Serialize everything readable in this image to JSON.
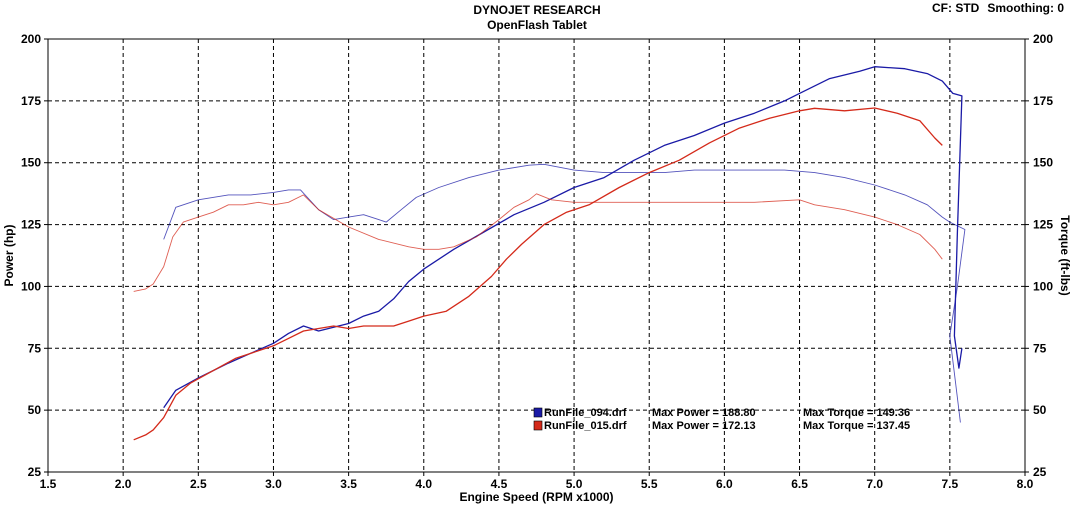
{
  "header": {
    "title": "DYNOJET RESEARCH",
    "subtitle": "OpenFlash Tablet",
    "cf_label": "CF: STD",
    "smoothing_label": "Smoothing: 0"
  },
  "colors": {
    "run1": "#1a1aa6",
    "run2": "#d42a1a",
    "grid": "#000000",
    "background": "#ffffff"
  },
  "chart_data": {
    "type": "line",
    "xlabel": "Engine Speed (RPM x1000)",
    "ylabel": "Power (hp)",
    "y2label": "Torque (ft-lbs)",
    "xlim": [
      1.5,
      8.0
    ],
    "ylim": [
      25,
      200
    ],
    "y2lim": [
      25,
      200
    ],
    "xticks": [
      "1.5",
      "2.0",
      "2.5",
      "3.0",
      "3.5",
      "4.0",
      "4.5",
      "5.0",
      "5.5",
      "6.0",
      "6.5",
      "7.0",
      "7.5",
      "8.0"
    ],
    "yticks": [
      "25",
      "50",
      "75",
      "100",
      "125",
      "150",
      "175",
      "200"
    ],
    "grid": true,
    "legend_position": "bottom-center",
    "legend": [
      {
        "file": "RunFile_094.drf",
        "power_label": "Max Power = 188.80",
        "torque_label": "Max Torque = 149.36"
      },
      {
        "file": "RunFile_015.drf",
        "power_label": "Max Power = 172.13",
        "torque_label": "Max Torque = 137.45"
      }
    ],
    "series": [
      {
        "name": "RunFile_094.drf",
        "quantity": "power",
        "color": "#1a1aa6",
        "dashed": false,
        "points": [
          [
            2.27,
            51
          ],
          [
            2.35,
            58
          ],
          [
            2.5,
            63
          ],
          [
            2.7,
            69
          ],
          [
            2.85,
            73
          ],
          [
            3.0,
            77
          ],
          [
            3.1,
            81
          ],
          [
            3.2,
            84
          ],
          [
            3.3,
            82
          ],
          [
            3.5,
            85
          ],
          [
            3.6,
            88
          ],
          [
            3.7,
            90
          ],
          [
            3.8,
            95
          ],
          [
            3.9,
            102
          ],
          [
            4.0,
            107
          ],
          [
            4.2,
            115
          ],
          [
            4.4,
            122
          ],
          [
            4.6,
            129
          ],
          [
            4.8,
            134
          ],
          [
            5.0,
            140
          ],
          [
            5.2,
            144
          ],
          [
            5.4,
            151
          ],
          [
            5.6,
            157
          ],
          [
            5.8,
            161
          ],
          [
            6.0,
            166
          ],
          [
            6.2,
            170
          ],
          [
            6.4,
            175
          ],
          [
            6.5,
            178
          ],
          [
            6.7,
            184
          ],
          [
            6.9,
            187
          ],
          [
            7.0,
            188.8
          ],
          [
            7.2,
            188
          ],
          [
            7.35,
            186
          ],
          [
            7.45,
            183
          ],
          [
            7.52,
            178
          ],
          [
            7.58,
            177
          ],
          [
            7.55,
            122
          ],
          [
            7.53,
            80
          ],
          [
            7.56,
            67
          ],
          [
            7.58,
            75
          ]
        ]
      },
      {
        "name": "RunFile_094.drf",
        "quantity": "torque",
        "color": "#1a1aa6",
        "dashed": true,
        "points": [
          [
            2.27,
            119
          ],
          [
            2.35,
            132
          ],
          [
            2.5,
            135
          ],
          [
            2.7,
            137
          ],
          [
            2.85,
            137
          ],
          [
            3.0,
            138
          ],
          [
            3.1,
            139
          ],
          [
            3.18,
            139
          ],
          [
            3.3,
            131
          ],
          [
            3.4,
            127
          ],
          [
            3.5,
            128
          ],
          [
            3.6,
            129
          ],
          [
            3.7,
            127
          ],
          [
            3.75,
            126
          ],
          [
            3.85,
            131
          ],
          [
            3.95,
            136
          ],
          [
            4.1,
            140
          ],
          [
            4.3,
            144
          ],
          [
            4.5,
            147
          ],
          [
            4.7,
            149
          ],
          [
            4.8,
            149.36
          ],
          [
            5.0,
            147
          ],
          [
            5.2,
            146
          ],
          [
            5.4,
            146
          ],
          [
            5.6,
            146
          ],
          [
            5.8,
            147
          ],
          [
            6.0,
            147
          ],
          [
            6.2,
            147
          ],
          [
            6.4,
            147
          ],
          [
            6.6,
            146
          ],
          [
            6.8,
            144
          ],
          [
            7.0,
            141
          ],
          [
            7.2,
            137
          ],
          [
            7.35,
            133
          ],
          [
            7.45,
            128
          ],
          [
            7.5,
            126
          ],
          [
            7.6,
            123
          ],
          [
            7.55,
            100
          ],
          [
            7.5,
            80
          ],
          [
            7.55,
            55
          ],
          [
            7.57,
            45
          ]
        ]
      },
      {
        "name": "RunFile_015.drf",
        "quantity": "power",
        "color": "#d42a1a",
        "dashed": false,
        "points": [
          [
            2.07,
            38
          ],
          [
            2.15,
            40
          ],
          [
            2.2,
            42
          ],
          [
            2.27,
            47
          ],
          [
            2.35,
            56
          ],
          [
            2.45,
            61
          ],
          [
            2.6,
            66
          ],
          [
            2.75,
            71
          ],
          [
            2.9,
            74
          ],
          [
            3.0,
            76
          ],
          [
            3.1,
            79
          ],
          [
            3.2,
            82
          ],
          [
            3.3,
            83
          ],
          [
            3.4,
            84
          ],
          [
            3.5,
            83
          ],
          [
            3.6,
            84
          ],
          [
            3.7,
            84
          ],
          [
            3.8,
            84
          ],
          [
            3.9,
            86
          ],
          [
            4.0,
            88
          ],
          [
            4.15,
            90
          ],
          [
            4.3,
            96
          ],
          [
            4.45,
            104
          ],
          [
            4.55,
            111
          ],
          [
            4.65,
            117
          ],
          [
            4.8,
            125
          ],
          [
            4.95,
            130
          ],
          [
            5.1,
            133
          ],
          [
            5.3,
            140
          ],
          [
            5.5,
            146
          ],
          [
            5.7,
            151
          ],
          [
            5.9,
            158
          ],
          [
            6.1,
            164
          ],
          [
            6.3,
            168
          ],
          [
            6.5,
            171
          ],
          [
            6.6,
            172
          ],
          [
            6.8,
            171
          ],
          [
            7.0,
            172.13
          ],
          [
            7.15,
            170
          ],
          [
            7.3,
            167
          ],
          [
            7.4,
            160
          ],
          [
            7.45,
            157
          ]
        ]
      },
      {
        "name": "RunFile_015.drf",
        "quantity": "torque",
        "color": "#d42a1a",
        "dashed": true,
        "points": [
          [
            2.07,
            98
          ],
          [
            2.15,
            99
          ],
          [
            2.2,
            101
          ],
          [
            2.27,
            108
          ],
          [
            2.33,
            120
          ],
          [
            2.4,
            126
          ],
          [
            2.5,
            128
          ],
          [
            2.6,
            130
          ],
          [
            2.7,
            133
          ],
          [
            2.8,
            133
          ],
          [
            2.9,
            134
          ],
          [
            3.0,
            133
          ],
          [
            3.1,
            134
          ],
          [
            3.2,
            137
          ],
          [
            3.3,
            131
          ],
          [
            3.5,
            124
          ],
          [
            3.7,
            119
          ],
          [
            3.9,
            116
          ],
          [
            4.0,
            115
          ],
          [
            4.1,
            115
          ],
          [
            4.2,
            116
          ],
          [
            4.35,
            120
          ],
          [
            4.5,
            127
          ],
          [
            4.6,
            132
          ],
          [
            4.7,
            135
          ],
          [
            4.75,
            137.45
          ],
          [
            4.85,
            135
          ],
          [
            5.0,
            134
          ],
          [
            5.2,
            134
          ],
          [
            5.5,
            134
          ],
          [
            5.8,
            134
          ],
          [
            6.0,
            134
          ],
          [
            6.2,
            134
          ],
          [
            6.5,
            135
          ],
          [
            6.6,
            133
          ],
          [
            6.8,
            131
          ],
          [
            7.0,
            128
          ],
          [
            7.15,
            125
          ],
          [
            7.3,
            121
          ],
          [
            7.4,
            115
          ],
          [
            7.45,
            111
          ]
        ]
      }
    ]
  }
}
